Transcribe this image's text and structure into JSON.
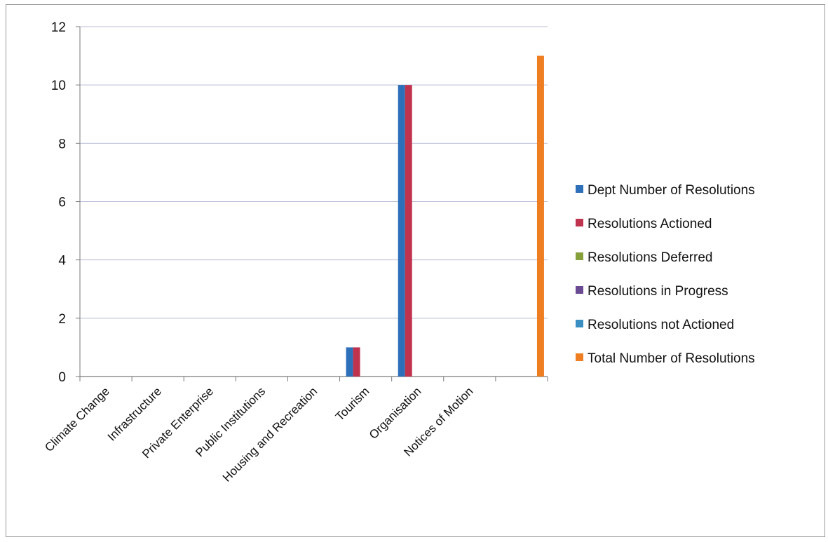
{
  "chart_data": {
    "type": "bar",
    "title": "",
    "xlabel": "",
    "ylabel": "",
    "ylim": [
      0,
      12
    ],
    "yticks": [
      0,
      2,
      4,
      6,
      8,
      10,
      12
    ],
    "grid": true,
    "legend_position": "right",
    "categories": [
      "Climate Change",
      "Infrastructure",
      "Private Enterprise",
      "Public Institutions",
      "Housing and Recreation",
      "Tourism",
      "Organisation",
      "Notices of Motion",
      ""
    ],
    "series": [
      {
        "name": "Dept Number of Resolutions",
        "color": "#2e6fba",
        "values": [
          0,
          0,
          0,
          0,
          0,
          1,
          10,
          0,
          0
        ]
      },
      {
        "name": "Resolutions Actioned",
        "color": "#c0334e",
        "values": [
          0,
          0,
          0,
          0,
          0,
          1,
          10,
          0,
          0
        ]
      },
      {
        "name": "Resolutions Deferred",
        "color": "#86a03c",
        "values": [
          0,
          0,
          0,
          0,
          0,
          0,
          0,
          0,
          0
        ]
      },
      {
        "name": "Resolutions in Progress",
        "color": "#6a4b93",
        "values": [
          0,
          0,
          0,
          0,
          0,
          0,
          0,
          0,
          0
        ]
      },
      {
        "name": "Resolutions not Actioned",
        "color": "#3a8fc2",
        "values": [
          0,
          0,
          0,
          0,
          0,
          0,
          0,
          0,
          0
        ]
      },
      {
        "name": "Total Number of Resolutions",
        "color": "#ef7d22",
        "values": [
          0,
          0,
          0,
          0,
          0,
          0,
          0,
          0,
          11
        ]
      }
    ]
  }
}
